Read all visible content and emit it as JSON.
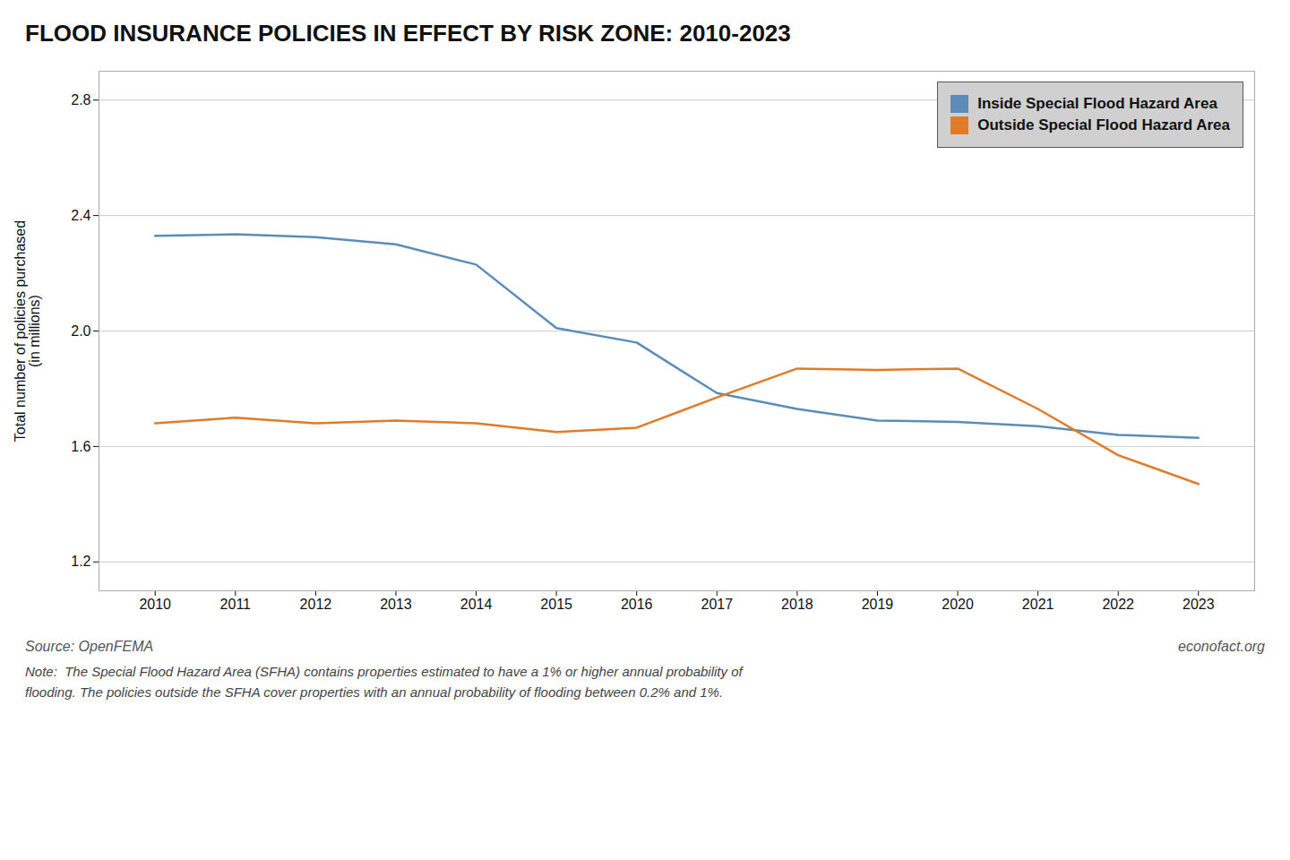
{
  "chart_data": {
    "type": "line",
    "title": "FLOOD INSURANCE POLICIES IN EFFECT BY RISK ZONE: 2010-2023",
    "x": [
      2010,
      2011,
      2012,
      2013,
      2014,
      2015,
      2016,
      2017,
      2018,
      2019,
      2020,
      2021,
      2022,
      2023
    ],
    "series": [
      {
        "name": "Inside Special Flood Hazard Area",
        "color": "#5b8db8",
        "values": [
          2.33,
          2.335,
          2.325,
          2.3,
          2.23,
          2.01,
          1.96,
          1.785,
          1.73,
          1.69,
          1.685,
          1.67,
          1.64,
          1.63
        ]
      },
      {
        "name": "Outside Special Flood Hazard Area",
        "color": "#e07b2a",
        "values": [
          1.68,
          1.7,
          1.68,
          1.69,
          1.68,
          1.65,
          1.665,
          1.77,
          1.87,
          1.865,
          1.87,
          1.73,
          1.57,
          1.47
        ]
      }
    ],
    "ylabel": "Total number of policies purchased\n(in millions)",
    "xlim": [
      2009.3,
      2023.7
    ],
    "xticks": [
      2010,
      2011,
      2012,
      2013,
      2014,
      2015,
      2016,
      2017,
      2018,
      2019,
      2020,
      2021,
      2022,
      2023
    ],
    "ylim": [
      1.1,
      2.9
    ],
    "yticks": [
      1.2,
      1.6,
      {
        "value": 2.0,
        "label": "2.0"
      },
      2.4,
      2.8
    ],
    "grid": true,
    "legend": "upper right",
    "source": "Source: OpenFEMA",
    "credit": "econofact.org",
    "note": "Note:  The Special Flood Hazard Area (SFHA) contains properties estimated to have a 1% or higher annual probability of\nflooding. The policies outside the SFHA cover properties with an annual probability of flooding between 0.2% and 1%."
  }
}
